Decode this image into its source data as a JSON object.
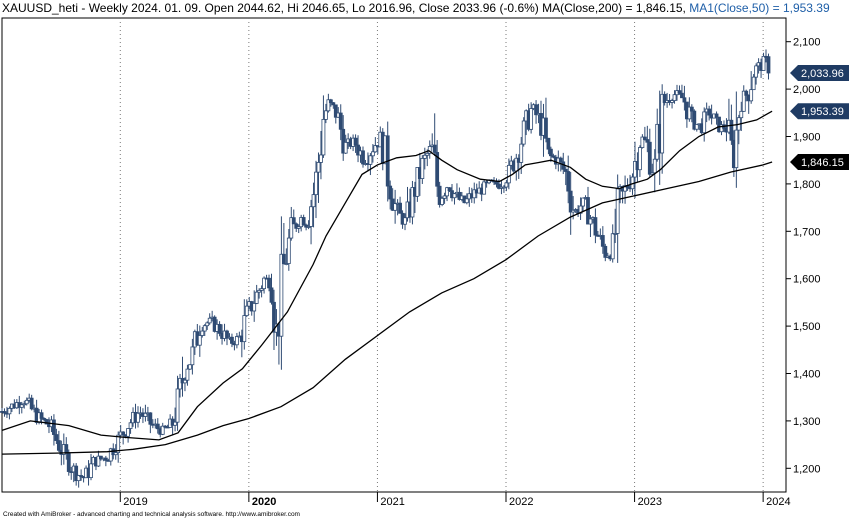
{
  "header": {
    "main": "XAUUSD_heti - Weekly 2024. 01. 09. Open 2044.62, Hi 2046.65, Lo 2016.96, Close 2033.96 (-0.6%)",
    "ma200": "MA(Close,200) = 1,846.15,",
    "ma50": "MA1(Close,50) = 1,953.39"
  },
  "footer": "Created with AmiBroker - advanced charting and technical analysis software. http://www.amibroker.com",
  "chart_data": {
    "type": "candlestick",
    "symbol": "XAUUSD_heti",
    "period": "Weekly",
    "title": "XAUUSD_heti - Weekly 2024. 01. 09.",
    "last_bar": {
      "open": 2044.62,
      "high": 2046.65,
      "low": 2016.96,
      "close": 2033.96,
      "change": "-0.6%"
    },
    "ylim": [
      1150,
      2150
    ],
    "y_ticks": [
      "1,200",
      "1,300",
      "1,400",
      "1,500",
      "1,600",
      "1,700",
      "1,800",
      "1,900",
      "2,000",
      "2,100"
    ],
    "x_ticks": [
      "2019",
      "2020",
      "2021",
      "2022",
      "2023",
      "2024"
    ],
    "x_tick_years": [
      2019,
      2020,
      2021,
      2022,
      2023,
      2024
    ],
    "x_range": [
      2018.08,
      2024.1
    ],
    "grid": "vertical dotted",
    "price_path": [
      [
        2018.08,
        1320
      ],
      [
        2018.18,
        1335
      ],
      [
        2018.25,
        1345
      ],
      [
        2018.35,
        1310
      ],
      [
        2018.45,
        1290
      ],
      [
        2018.55,
        1235
      ],
      [
        2018.65,
        1190
      ],
      [
        2018.72,
        1180
      ],
      [
        2018.8,
        1215
      ],
      [
        2018.9,
        1225
      ],
      [
        2018.97,
        1255
      ],
      [
        2019.07,
        1295
      ],
      [
        2019.15,
        1320
      ],
      [
        2019.25,
        1290
      ],
      [
        2019.33,
        1280
      ],
      [
        2019.4,
        1290
      ],
      [
        2019.45,
        1340
      ],
      [
        2019.5,
        1410
      ],
      [
        2019.55,
        1430
      ],
      [
        2019.62,
        1500
      ],
      [
        2019.7,
        1510
      ],
      [
        2019.78,
        1490
      ],
      [
        2019.85,
        1465
      ],
      [
        2019.93,
        1475
      ],
      [
        2019.98,
        1520
      ],
      [
        2020.05,
        1560
      ],
      [
        2020.12,
        1600
      ],
      [
        2020.18,
        1590
      ],
      [
        2020.22,
        1480
      ],
      [
        2020.27,
        1620
      ],
      [
        2020.33,
        1700
      ],
      [
        2020.4,
        1730
      ],
      [
        2020.45,
        1720
      ],
      [
        2020.52,
        1800
      ],
      [
        2020.58,
        1940
      ],
      [
        2020.62,
        1970
      ],
      [
        2020.68,
        1950
      ],
      [
        2020.75,
        1880
      ],
      [
        2020.82,
        1890
      ],
      [
        2020.9,
        1850
      ],
      [
        2020.97,
        1880
      ],
      [
        2021.03,
        1900
      ],
      [
        2021.08,
        1820
      ],
      [
        2021.15,
        1740
      ],
      [
        2021.22,
        1720
      ],
      [
        2021.28,
        1780
      ],
      [
        2021.35,
        1840
      ],
      [
        2021.42,
        1880
      ],
      [
        2021.48,
        1770
      ],
      [
        2021.55,
        1800
      ],
      [
        2021.62,
        1770
      ],
      [
        2021.68,
        1760
      ],
      [
        2021.75,
        1780
      ],
      [
        2021.82,
        1790
      ],
      [
        2021.88,
        1800
      ],
      [
        2021.95,
        1800
      ],
      [
        2022.02,
        1820
      ],
      [
        2022.08,
        1860
      ],
      [
        2022.15,
        1920
      ],
      [
        2022.2,
        1960
      ],
      [
        2022.27,
        1930
      ],
      [
        2022.33,
        1860
      ],
      [
        2022.4,
        1850
      ],
      [
        2022.47,
        1820
      ],
      [
        2022.53,
        1740
      ],
      [
        2022.6,
        1760
      ],
      [
        2022.67,
        1720
      ],
      [
        2022.73,
        1680
      ],
      [
        2022.78,
        1650
      ],
      [
        2022.83,
        1660
      ],
      [
        2022.88,
        1760
      ],
      [
        2022.93,
        1790
      ],
      [
        2022.98,
        1820
      ],
      [
        2023.05,
        1900
      ],
      [
        2023.1,
        1880
      ],
      [
        2023.15,
        1820
      ],
      [
        2023.22,
        1970
      ],
      [
        2023.3,
        1990
      ],
      [
        2023.38,
        1980
      ],
      [
        2023.45,
        1930
      ],
      [
        2023.52,
        1920
      ],
      [
        2023.58,
        1950
      ],
      [
        2023.65,
        1920
      ],
      [
        2023.72,
        1920
      ],
      [
        2023.77,
        1850
      ],
      [
        2023.82,
        1980
      ],
      [
        2023.88,
        1990
      ],
      [
        2023.93,
        2040
      ],
      [
        2023.98,
        2050
      ],
      [
        2024.02,
        2060
      ],
      [
        2024.07,
        2034
      ]
    ],
    "series": [
      {
        "name": "MA1(Close,50)",
        "last": 1953.39,
        "points": [
          [
            2018.08,
            1280
          ],
          [
            2018.3,
            1300
          ],
          [
            2018.6,
            1290
          ],
          [
            2018.85,
            1270
          ],
          [
            2019.05,
            1265
          ],
          [
            2019.3,
            1260
          ],
          [
            2019.45,
            1275
          ],
          [
            2019.6,
            1330
          ],
          [
            2019.8,
            1380
          ],
          [
            2019.95,
            1410
          ],
          [
            2020.1,
            1460
          ],
          [
            2020.3,
            1530
          ],
          [
            2020.5,
            1630
          ],
          [
            2020.6,
            1690
          ],
          [
            2020.75,
            1760
          ],
          [
            2020.88,
            1820
          ],
          [
            2021.0,
            1840
          ],
          [
            2021.15,
            1855
          ],
          [
            2021.3,
            1860
          ],
          [
            2021.4,
            1870
          ],
          [
            2021.5,
            1850
          ],
          [
            2021.62,
            1830
          ],
          [
            2021.8,
            1810
          ],
          [
            2021.95,
            1805
          ],
          [
            2022.05,
            1820
          ],
          [
            2022.15,
            1840
          ],
          [
            2022.25,
            1845
          ],
          [
            2022.35,
            1850
          ],
          [
            2022.5,
            1835
          ],
          [
            2022.62,
            1810
          ],
          [
            2022.75,
            1795
          ],
          [
            2022.88,
            1790
          ],
          [
            2022.98,
            1800
          ],
          [
            2023.1,
            1810
          ],
          [
            2023.2,
            1830
          ],
          [
            2023.35,
            1870
          ],
          [
            2023.5,
            1900
          ],
          [
            2023.65,
            1920
          ],
          [
            2023.8,
            1925
          ],
          [
            2023.95,
            1935
          ],
          [
            2024.07,
            1953.39
          ]
        ]
      },
      {
        "name": "MA(Close,200)",
        "last": 1846.15,
        "points": [
          [
            2018.08,
            1230
          ],
          [
            2018.5,
            1232
          ],
          [
            2018.9,
            1235
          ],
          [
            2019.1,
            1240
          ],
          [
            2019.35,
            1250
          ],
          [
            2019.6,
            1270
          ],
          [
            2019.8,
            1290
          ],
          [
            2020.0,
            1305
          ],
          [
            2020.25,
            1330
          ],
          [
            2020.5,
            1370
          ],
          [
            2020.75,
            1430
          ],
          [
            2021.0,
            1480
          ],
          [
            2021.25,
            1530
          ],
          [
            2021.5,
            1570
          ],
          [
            2021.75,
            1600
          ],
          [
            2022.0,
            1640
          ],
          [
            2022.25,
            1690
          ],
          [
            2022.5,
            1730
          ],
          [
            2022.75,
            1760
          ],
          [
            2023.0,
            1775
          ],
          [
            2023.25,
            1790
          ],
          [
            2023.5,
            1805
          ],
          [
            2023.75,
            1825
          ],
          [
            2024.0,
            1840
          ],
          [
            2024.07,
            1846.15
          ]
        ]
      }
    ],
    "price_labels": [
      {
        "value": 2033.96,
        "text": "2,033.96"
      },
      {
        "value": 1953.39,
        "text": "1,953.39"
      },
      {
        "value": 1846.15,
        "text": "1,846.15"
      }
    ],
    "colors": {
      "candle_up": "#ffffff",
      "candle_down": "#2f4b73",
      "wick": "#2f4b73",
      "ma50_label_bg": "#1f3b63",
      "ma200_label_bg": "#000000",
      "price_label_bg": "#1f3b63"
    }
  }
}
